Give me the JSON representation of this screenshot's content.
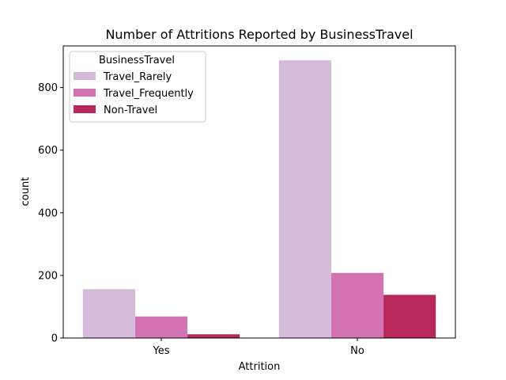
{
  "chart_data": {
    "type": "bar",
    "title": "Number of Attritions Reported by BusinessTravel",
    "xlabel": "Attrition",
    "ylabel": "count",
    "categories": [
      "Yes",
      "No"
    ],
    "series": [
      {
        "name": "Travel_Rarely",
        "values": [
          156,
          887
        ],
        "color": "#d4bbd9"
      },
      {
        "name": "Travel_Frequently",
        "values": [
          69,
          208
        ],
        "color": "#d473b1"
      },
      {
        "name": "Non-Travel",
        "values": [
          12,
          138
        ],
        "color": "#b8285d"
      }
    ],
    "ylim": [
      0,
      933
    ],
    "yticks": [
      0,
      200,
      400,
      600,
      800
    ],
    "legend": {
      "title": "BusinessTravel",
      "position": "top-left"
    },
    "grid": false
  }
}
